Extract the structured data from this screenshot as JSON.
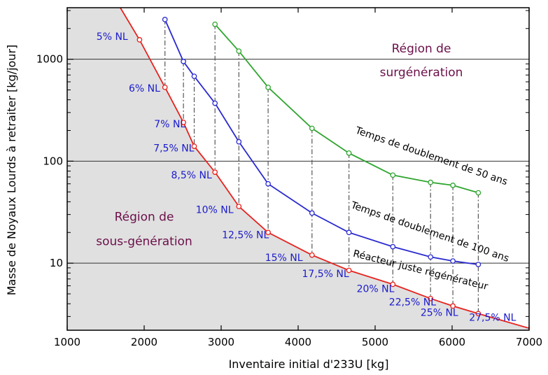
{
  "chart_data": {
    "type": "line",
    "xlabel": "Inventaire initial d'233U [kg]",
    "ylabel": "Masse de Noyaux Lourds à retraiter [kg/jour]",
    "x_ticks": [
      "1000",
      "2000",
      "3000",
      "4000",
      "5000",
      "6000",
      "7000"
    ],
    "y_ticks": [
      "10",
      "100",
      "1000"
    ],
    "xlim": [
      1000,
      7000
    ],
    "ylim": [
      2.2,
      3200
    ],
    "y_scale": "log",
    "grid": "horizontal at decades",
    "colors": {
      "red": "#e8211d",
      "blue": "#2a2ad0",
      "green": "#2fa52f",
      "shade": "#e0e0e0",
      "nl_label": "#1a1acc",
      "region_label": "#6b0f4a"
    },
    "series": [
      {
        "name": "Réacteur juste régénérateur",
        "color": "red",
        "x": [
          1690,
          1940,
          2270,
          2510,
          2650,
          2920,
          3230,
          3610,
          4180,
          4660,
          5230,
          5720,
          6010,
          6340,
          7000
        ],
        "y": [
          3200,
          1550,
          530,
          240,
          140,
          78,
          36,
          20,
          12,
          8.5,
          6.2,
          4.5,
          3.8,
          3.2,
          2.3
        ],
        "markers": [
          false,
          true,
          true,
          true,
          true,
          true,
          true,
          true,
          true,
          true,
          true,
          true,
          true,
          true,
          false
        ]
      },
      {
        "name": "Temps de doublement de 100 ans",
        "color": "blue",
        "x": [
          2270,
          2510,
          2650,
          2920,
          3230,
          3610,
          4180,
          4660,
          5230,
          5720,
          6010,
          6340
        ],
        "y": [
          2450,
          950,
          680,
          370,
          155,
          60,
          31,
          20,
          14.5,
          11.5,
          10.5,
          9.7
        ]
      },
      {
        "name": "Temps de doublement de 50 ans",
        "color": "green",
        "x": [
          2920,
          3230,
          3610,
          4180,
          4660,
          5230,
          5720,
          6010,
          6340
        ],
        "y": [
          2200,
          1200,
          530,
          210,
          120,
          73,
          62,
          58,
          49
        ]
      }
    ],
    "connectors_x": [
      2270,
      2510,
      2650,
      2920,
      3230,
      3610,
      4180,
      4660,
      5230,
      5720,
      6010,
      6340
    ],
    "annotations": [
      {
        "text": "5% NL",
        "x": 1380,
        "y": 1550,
        "kind": "nl"
      },
      {
        "text": "6% NL",
        "x": 1800,
        "y": 480,
        "kind": "nl"
      },
      {
        "text": "7% NL",
        "x": 2130,
        "y": 215,
        "kind": "nl"
      },
      {
        "text": "7,5% NL",
        "x": 2120,
        "y": 125,
        "kind": "nl"
      },
      {
        "text": "8,5% NL",
        "x": 2350,
        "y": 68,
        "kind": "nl"
      },
      {
        "text": "10% NL",
        "x": 2670,
        "y": 31,
        "kind": "nl"
      },
      {
        "text": "12,5% NL",
        "x": 3010,
        "y": 17.5,
        "kind": "nl"
      },
      {
        "text": "15% NL",
        "x": 3570,
        "y": 10.5,
        "kind": "nl"
      },
      {
        "text": "17,5% NL",
        "x": 4050,
        "y": 7.3,
        "kind": "nl"
      },
      {
        "text": "20% NL",
        "x": 4760,
        "y": 5.2,
        "kind": "nl"
      },
      {
        "text": "22,5% NL",
        "x": 5180,
        "y": 3.85,
        "kind": "nl"
      },
      {
        "text": "25% NL",
        "x": 5590,
        "y": 3.05,
        "kind": "nl"
      },
      {
        "text": "27,5% NL",
        "x": 6220,
        "y": 2.72,
        "kind": "nl"
      },
      {
        "text": "Région de",
        "x": 5600,
        "y": 1160,
        "kind": "region"
      },
      {
        "text": "surgénération",
        "x": 5600,
        "y": 680,
        "kind": "region"
      },
      {
        "text": "Région de",
        "x": 2000,
        "y": 26,
        "kind": "region"
      },
      {
        "text": "sous-génération",
        "x": 2000,
        "y": 15,
        "kind": "region"
      },
      {
        "text": "Temps de doublement de 50 ans",
        "x": 5720,
        "y": 105,
        "kind": "curve",
        "angle": 19
      },
      {
        "text": "Temps de doublement de 100 ans",
        "x": 5700,
        "y": 19,
        "kind": "curve",
        "angle": 19
      },
      {
        "text": "Réacteur juste régénérateur",
        "x": 5580,
        "y": 8.0,
        "kind": "curve",
        "angle": 14
      }
    ]
  }
}
